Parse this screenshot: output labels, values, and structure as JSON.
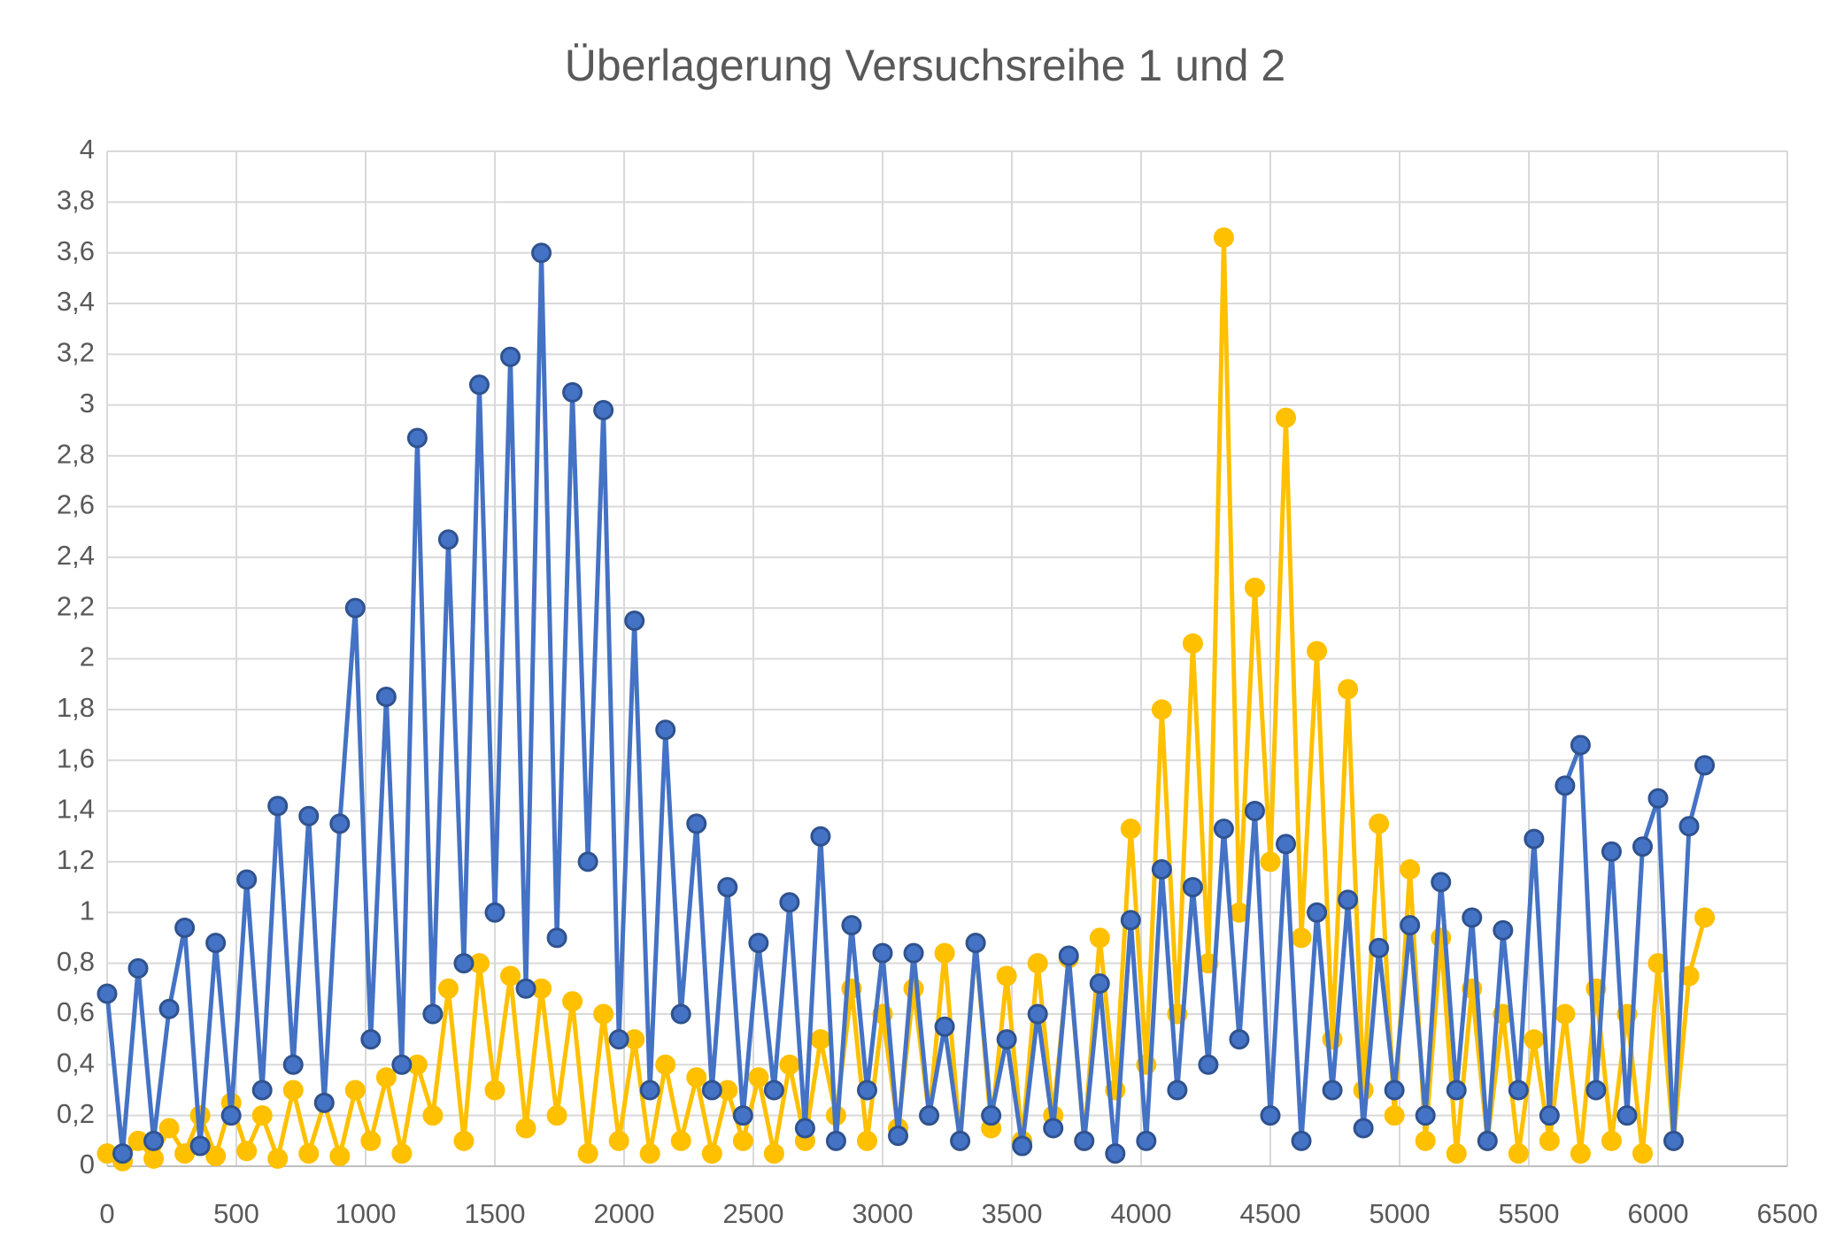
{
  "chart_data": {
    "type": "line",
    "title": "Überlagerung Versuchsreihe 1 und 2",
    "x": [
      0,
      60,
      120,
      180,
      240,
      300,
      360,
      420,
      480,
      540,
      600,
      660,
      720,
      780,
      840,
      900,
      960,
      1020,
      1080,
      1140,
      1200,
      1260,
      1320,
      1380,
      1440,
      1500,
      1560,
      1620,
      1680,
      1740,
      1800,
      1860,
      1920,
      1980,
      2040,
      2100,
      2160,
      2220,
      2280,
      2340,
      2400,
      2460,
      2520,
      2580,
      2640,
      2700,
      2760,
      2820,
      2880,
      2940,
      3000,
      3060,
      3120,
      3180,
      3240,
      3300,
      3360,
      3420,
      3480,
      3540,
      3600,
      3660,
      3720,
      3780,
      3840,
      3900,
      3960,
      4020,
      4080,
      4140,
      4200,
      4260,
      4320,
      4380,
      4440,
      4500,
      4560,
      4620,
      4680,
      4740,
      4800,
      4860,
      4920,
      4980,
      5040,
      5100,
      5160,
      5220,
      5280,
      5340,
      5400,
      5460,
      5520,
      5580,
      5640,
      5700,
      5760,
      5820,
      5880,
      5940,
      6000,
      6060,
      6120,
      6180
    ],
    "series": [
      {
        "color": "#FFC000",
        "marker_edge": "#FFC000",
        "values": [
          0.05,
          0.02,
          0.1,
          0.03,
          0.15,
          0.05,
          0.2,
          0.04,
          0.25,
          0.06,
          0.2,
          0.03,
          0.3,
          0.05,
          0.25,
          0.04,
          0.3,
          0.1,
          0.35,
          0.05,
          0.4,
          0.2,
          0.7,
          0.1,
          0.8,
          0.3,
          0.75,
          0.15,
          0.7,
          0.2,
          0.65,
          0.05,
          0.6,
          0.1,
          0.5,
          0.05,
          0.4,
          0.1,
          0.35,
          0.05,
          0.3,
          0.1,
          0.35,
          0.05,
          0.4,
          0.1,
          0.5,
          0.2,
          0.7,
          0.1,
          0.6,
          0.15,
          0.7,
          0.2,
          0.84,
          0.1,
          0.88,
          0.15,
          0.75,
          0.1,
          0.8,
          0.2,
          0.82,
          0.1,
          0.9,
          0.3,
          1.33,
          0.4,
          1.8,
          0.6,
          2.06,
          0.8,
          3.66,
          1.0,
          2.28,
          1.2,
          2.95,
          0.9,
          2.03,
          0.5,
          1.88,
          0.3,
          1.35,
          0.2,
          1.17,
          0.1,
          0.9,
          0.05,
          0.7,
          0.1,
          0.6,
          0.05,
          0.5,
          0.1,
          0.6,
          0.05,
          0.7,
          0.1,
          0.6,
          0.05,
          0.8,
          0.1,
          0.75,
          0.98
        ]
      },
      {
        "color": "#4472C4",
        "marker_edge": "#2F528F",
        "values": [
          0.68,
          0.05,
          0.78,
          0.1,
          0.62,
          0.94,
          0.08,
          0.88,
          0.2,
          1.13,
          0.3,
          1.42,
          0.4,
          1.38,
          0.25,
          1.35,
          2.2,
          0.5,
          1.85,
          0.4,
          2.87,
          0.6,
          2.47,
          0.8,
          3.08,
          1.0,
          3.19,
          0.7,
          3.6,
          0.9,
          3.05,
          1.2,
          2.98,
          0.5,
          2.15,
          0.3,
          1.72,
          0.6,
          1.35,
          0.3,
          1.1,
          0.2,
          0.88,
          0.3,
          1.04,
          0.15,
          1.3,
          0.1,
          0.95,
          0.3,
          0.84,
          0.12,
          0.84,
          0.2,
          0.55,
          0.1,
          0.88,
          0.2,
          0.5,
          0.08,
          0.6,
          0.15,
          0.83,
          0.1,
          0.72,
          0.05,
          0.97,
          0.1,
          1.17,
          0.3,
          1.1,
          0.4,
          1.33,
          0.5,
          1.4,
          0.2,
          1.27,
          0.1,
          1.0,
          0.3,
          1.05,
          0.15,
          0.86,
          0.3,
          0.95,
          0.2,
          1.12,
          0.3,
          0.98,
          0.1,
          0.93,
          0.3,
          1.29,
          0.2,
          1.5,
          1.66,
          0.3,
          1.24,
          0.2,
          1.26,
          1.45,
          0.1,
          1.34,
          1.58
        ]
      }
    ],
    "xlim": [
      0,
      6500
    ],
    "xticks": [
      0,
      500,
      1000,
      1500,
      2000,
      2500,
      3000,
      3500,
      4000,
      4500,
      5000,
      5500,
      6000,
      6500
    ],
    "ylim": [
      0,
      4
    ],
    "yticks": [
      0,
      {
        "value": 0.2,
        "label": "0,2"
      },
      {
        "value": 0.4,
        "label": "0,4"
      },
      {
        "value": 0.6,
        "label": "0,6"
      },
      {
        "value": 0.8,
        "label": "0,8"
      },
      1,
      {
        "value": 1.2,
        "label": "1,2"
      },
      {
        "value": 1.4,
        "label": "1,4"
      },
      {
        "value": 1.6,
        "label": "1,6"
      },
      {
        "value": 1.8,
        "label": "1,8"
      },
      2,
      {
        "value": 2.2,
        "label": "2,2"
      },
      {
        "value": 2.4,
        "label": "2,4"
      },
      {
        "value": 2.6,
        "label": "2,6"
      },
      {
        "value": 2.8,
        "label": "2,8"
      },
      3,
      {
        "value": 3.2,
        "label": "3,2"
      },
      {
        "value": 3.4,
        "label": "3,4"
      },
      {
        "value": 3.6,
        "label": "3,6"
      },
      {
        "value": 3.8,
        "label": "3,8"
      },
      4
    ],
    "grid": true
  }
}
